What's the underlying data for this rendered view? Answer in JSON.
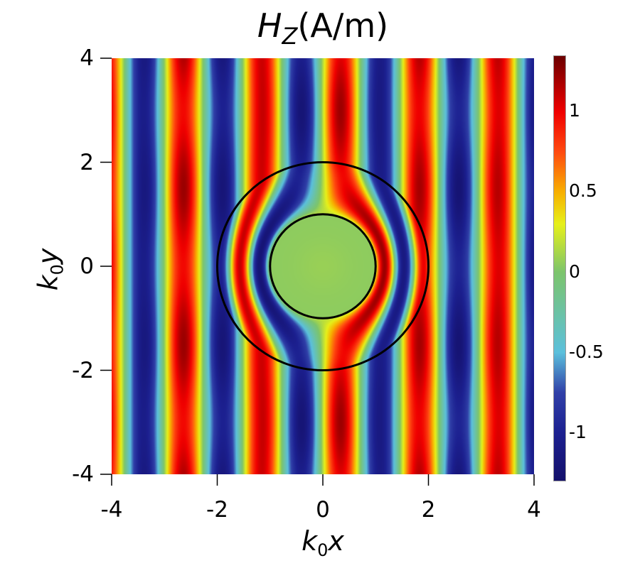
{
  "chart_data": {
    "type": "heatmap",
    "title": {
      "main": "H",
      "subscript": "Z",
      "units": "(A/m)"
    },
    "xlabel": {
      "main": "k",
      "subscript": "0",
      "var": "x"
    },
    "ylabel": {
      "main": "k",
      "subscript": "0",
      "var": "y"
    },
    "xlim": [
      -4,
      4
    ],
    "ylim": [
      -4,
      4
    ],
    "xticks": [
      "-4",
      "-2",
      "0",
      "2",
      "4"
    ],
    "yticks": [
      "4",
      "2",
      "0",
      "-2",
      "-4"
    ],
    "colorbar": {
      "range": [
        -1.3,
        1.35
      ],
      "ticks": [
        "1",
        "0.5",
        "0",
        "-0.5",
        "-1"
      ],
      "colormap": [
        "#14106b",
        "#1c2090",
        "#3040a8",
        "#5bc0dc",
        "#7cc46c",
        "#e6f01a",
        "#f7b000",
        "#ff4a10",
        "#f00000",
        "#6b0000"
      ],
      "colormap_values": [
        -1.3,
        -1.0,
        -0.75,
        -0.5,
        0.0,
        0.3,
        0.5,
        0.75,
        1.0,
        1.35
      ]
    },
    "field": {
      "description_values": "plane wave Hz propagating along x, cloaked region",
      "amplitude": 1.1,
      "wavelength": 1.49,
      "red_crest_x": 1.83,
      "inner_circle_radius": 1,
      "outer_circle_radius": 2,
      "inner_value": 0.05
    }
  }
}
